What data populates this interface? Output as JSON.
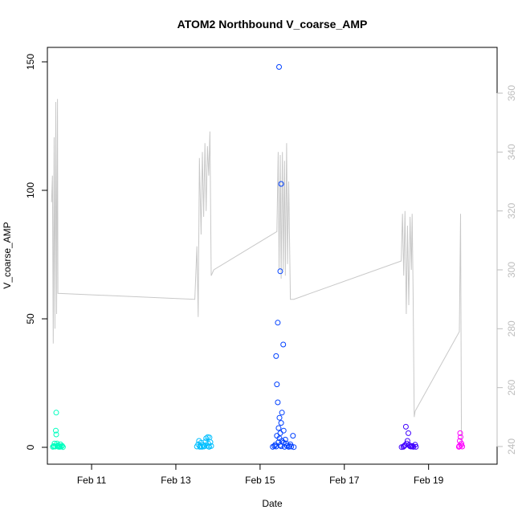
{
  "chart_data": {
    "type": "scatter",
    "title": "ATOM2 Northbound V_coarse_AMP",
    "xlabel": "Date",
    "ylabel": "V_coarse_AMP",
    "xlim": [
      10.0,
      20.6
    ],
    "ylim": [
      -5,
      150
    ],
    "y2lim": [
      240,
      360
    ],
    "x_ticks": [
      11,
      13,
      15,
      17,
      19
    ],
    "x_tick_labels": [
      "Feb 11",
      "Feb 13",
      "Feb 15",
      "Feb 17",
      "Feb 19"
    ],
    "y_ticks": [
      0,
      50,
      100,
      150
    ],
    "y_tick_labels": [
      "0",
      "50",
      "100",
      "150"
    ],
    "y2_ticks": [
      240,
      260,
      280,
      300,
      320,
      340,
      360
    ],
    "y2_tick_labels": [
      "240",
      "260",
      "280",
      "300",
      "320",
      "340",
      "360"
    ],
    "colors": {
      "line": "#c8c8c8",
      "right_axis": "#bdbdbd",
      "group_feb10": "#00ffbf",
      "group_feb13": "#00bfff",
      "group_feb15": "#0040ff",
      "group_feb18": "#4000ff",
      "group_feb19": "#ff00ff"
    },
    "series": [
      {
        "group": "group_feb10",
        "points": [
          [
            10.08,
            0.2
          ],
          [
            10.1,
            0.5
          ],
          [
            10.12,
            1.5
          ],
          [
            10.14,
            0.3
          ],
          [
            10.15,
            6.5
          ],
          [
            10.16,
            5.0
          ],
          [
            10.16,
            13.5
          ],
          [
            10.18,
            1.5
          ],
          [
            10.2,
            0.8
          ],
          [
            10.22,
            0.2
          ],
          [
            10.24,
            0.4
          ],
          [
            10.26,
            1.2
          ],
          [
            10.28,
            0.3
          ],
          [
            10.3,
            0.6
          ],
          [
            10.32,
            0.1
          ],
          [
            10.11,
            0.3
          ],
          [
            10.19,
            0.4
          ],
          [
            10.25,
            0.2
          ]
        ]
      },
      {
        "group": "group_feb13",
        "points": [
          [
            13.5,
            0.3
          ],
          [
            13.53,
            1.2
          ],
          [
            13.55,
            2.5
          ],
          [
            13.58,
            0.5
          ],
          [
            13.6,
            1.8
          ],
          [
            13.62,
            0.2
          ],
          [
            13.65,
            0.9
          ],
          [
            13.68,
            0.4
          ],
          [
            13.7,
            2.2
          ],
          [
            13.72,
            3.5
          ],
          [
            13.74,
            0.6
          ],
          [
            13.76,
            4.0
          ],
          [
            13.77,
            1.5
          ],
          [
            13.78,
            0.3
          ],
          [
            13.8,
            3.8
          ],
          [
            13.82,
            2.0
          ],
          [
            13.84,
            0.5
          ],
          [
            13.57,
            0.2
          ],
          [
            13.66,
            0.3
          ],
          [
            13.79,
            0.2
          ]
        ]
      },
      {
        "group": "group_feb15",
        "points": [
          [
            15.45,
            148
          ],
          [
            15.5,
            102.5
          ],
          [
            15.48,
            68.5
          ],
          [
            15.42,
            48.5
          ],
          [
            15.55,
            40
          ],
          [
            15.38,
            35.5
          ],
          [
            15.4,
            24.5
          ],
          [
            15.42,
            17.5
          ],
          [
            15.46,
            11.5
          ],
          [
            15.5,
            9.5
          ],
          [
            15.52,
            13.5
          ],
          [
            15.44,
            7.5
          ],
          [
            15.48,
            5.5
          ],
          [
            15.56,
            6.5
          ],
          [
            15.4,
            4.5
          ],
          [
            15.6,
            3.0
          ],
          [
            15.78,
            4.5
          ],
          [
            15.46,
            3.5
          ],
          [
            15.52,
            2.5
          ],
          [
            15.36,
            1.0
          ],
          [
            15.62,
            1.5
          ],
          [
            15.7,
            0.5
          ],
          [
            15.72,
            1.2
          ],
          [
            15.3,
            0.2
          ],
          [
            15.34,
            0.5
          ],
          [
            15.38,
            0.3
          ],
          [
            15.5,
            0.4
          ],
          [
            15.58,
            0.2
          ],
          [
            15.64,
            0.6
          ],
          [
            15.68,
            0.2
          ],
          [
            15.74,
            0.3
          ],
          [
            15.8,
            0.1
          ],
          [
            15.56,
            1.8
          ],
          [
            15.44,
            2.0
          ],
          [
            15.48,
            0.8
          ]
        ]
      },
      {
        "group": "group_feb18",
        "points": [
          [
            18.4,
            0.2
          ],
          [
            18.44,
            0.8
          ],
          [
            18.46,
            8.0
          ],
          [
            18.5,
            2.5
          ],
          [
            18.52,
            5.5
          ],
          [
            18.48,
            1.5
          ],
          [
            18.56,
            0.4
          ],
          [
            18.6,
            0.3
          ],
          [
            18.64,
            0.2
          ],
          [
            18.68,
            1.0
          ],
          [
            18.42,
            0.5
          ],
          [
            18.54,
            0.9
          ],
          [
            18.58,
            0.3
          ],
          [
            18.62,
            0.5
          ],
          [
            18.7,
            0.2
          ],
          [
            18.36,
            0.1
          ]
        ]
      },
      {
        "group": "group_feb19",
        "points": [
          [
            19.72,
            0.2
          ],
          [
            19.74,
            2.5
          ],
          [
            19.76,
            4.0
          ],
          [
            19.75,
            5.5
          ],
          [
            19.78,
            1.5
          ],
          [
            19.8,
            0.3
          ],
          [
            19.77,
            0.8
          ],
          [
            19.73,
            0.5
          ]
        ]
      }
    ],
    "line_series": {
      "axis": "right",
      "points": [
        [
          10.05,
          323
        ],
        [
          10.07,
          332
        ],
        [
          10.09,
          275
        ],
        [
          10.11,
          345
        ],
        [
          10.13,
          280
        ],
        [
          10.15,
          357
        ],
        [
          10.17,
          285
        ],
        [
          10.19,
          358
        ],
        [
          10.2,
          292
        ],
        [
          13.45,
          290
        ],
        [
          13.5,
          308
        ],
        [
          13.53,
          284
        ],
        [
          13.56,
          338
        ],
        [
          13.6,
          312
        ],
        [
          13.63,
          340
        ],
        [
          13.66,
          318
        ],
        [
          13.69,
          343
        ],
        [
          13.72,
          320
        ],
        [
          13.75,
          342
        ],
        [
          13.78,
          332
        ],
        [
          13.81,
          347
        ],
        [
          13.84,
          298
        ],
        [
          13.9,
          300
        ],
        [
          15.4,
          313
        ],
        [
          15.43,
          340
        ],
        [
          15.45,
          300
        ],
        [
          15.48,
          339
        ],
        [
          15.5,
          297
        ],
        [
          15.53,
          340
        ],
        [
          15.55,
          300
        ],
        [
          15.58,
          337
        ],
        [
          15.6,
          298
        ],
        [
          15.63,
          343
        ],
        [
          15.65,
          302
        ],
        [
          15.68,
          330
        ],
        [
          15.72,
          290
        ],
        [
          15.8,
          290
        ],
        [
          18.35,
          303
        ],
        [
          18.38,
          319
        ],
        [
          18.41,
          298
        ],
        [
          18.44,
          320
        ],
        [
          18.47,
          285
        ],
        [
          18.5,
          315
        ],
        [
          18.53,
          288
        ],
        [
          18.56,
          318
        ],
        [
          18.59,
          300
        ],
        [
          18.61,
          319
        ],
        [
          18.63,
          295
        ],
        [
          18.66,
          250
        ],
        [
          18.68,
          252
        ],
        [
          19.73,
          279
        ],
        [
          19.76,
          319
        ],
        [
          19.78,
          242
        ]
      ]
    }
  }
}
